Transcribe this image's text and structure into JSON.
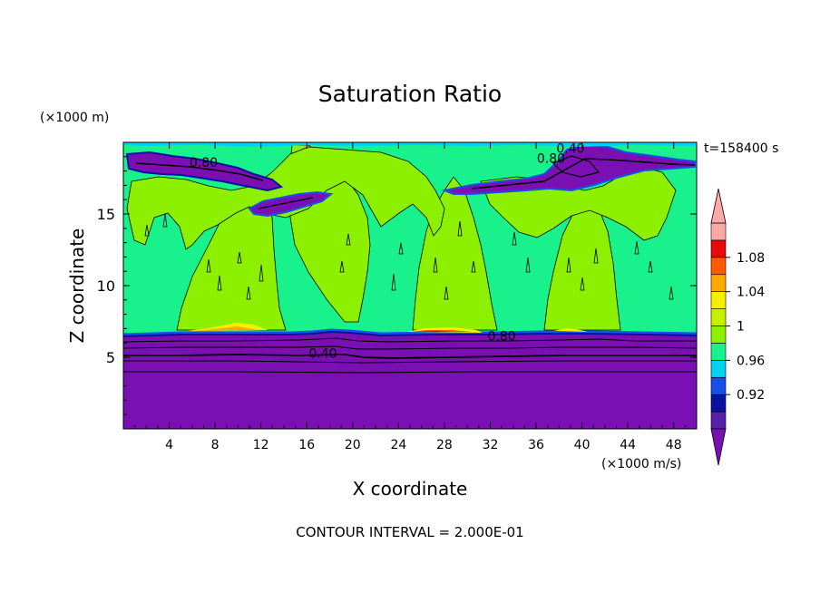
{
  "chart_data": {
    "type": "heatmap",
    "title": "Saturation Ratio",
    "xlabel": "X coordinate",
    "ylabel": "Z coordinate",
    "x_unit_label": "(×1000 m/s)",
    "y_unit_label": "(×1000 m)",
    "time_label": "t=158400 s",
    "footer": "CONTOUR INTERVAL = 2.000E-01",
    "xlim": [
      0,
      50
    ],
    "ylim": [
      0,
      20
    ],
    "x_ticks": [
      4,
      8,
      12,
      16,
      20,
      24,
      28,
      32,
      36,
      40,
      44,
      48
    ],
    "y_ticks": [
      5,
      10,
      15
    ],
    "contour_labels": [
      {
        "text": "0.80",
        "x": 7.0,
        "y": 18.6
      },
      {
        "text": "0.80",
        "x": 37.3,
        "y": 18.9
      },
      {
        "text": "0.40",
        "x": 39.0,
        "y": 19.6
      },
      {
        "text": "0.80",
        "x": 33.0,
        "y": 6.5
      },
      {
        "text": "0.40",
        "x": 17.4,
        "y": 5.3
      }
    ],
    "colorbar": {
      "levels": [
        0.9,
        0.92,
        0.94,
        0.96,
        0.98,
        1.0,
        1.02,
        1.04,
        1.06,
        1.08,
        1.1
      ],
      "tick_labels": [
        "0.92",
        "0.96",
        "1",
        "1.04",
        "1.08"
      ],
      "colors": [
        "#5a1fa8",
        "#0a10a0",
        "#1650e8",
        "#00d2f0",
        "#19f28c",
        "#8cf000",
        "#c6f000",
        "#f6f000",
        "#ffa800",
        "#ff5a00",
        "#e60a0a",
        "#ffa8a8"
      ],
      "under_color": "#7a10b4",
      "over_color": "#ffa8a8"
    },
    "regions": {
      "lower_layer_top_z": 6.7,
      "upper_boundary_z": 19.8
    }
  }
}
